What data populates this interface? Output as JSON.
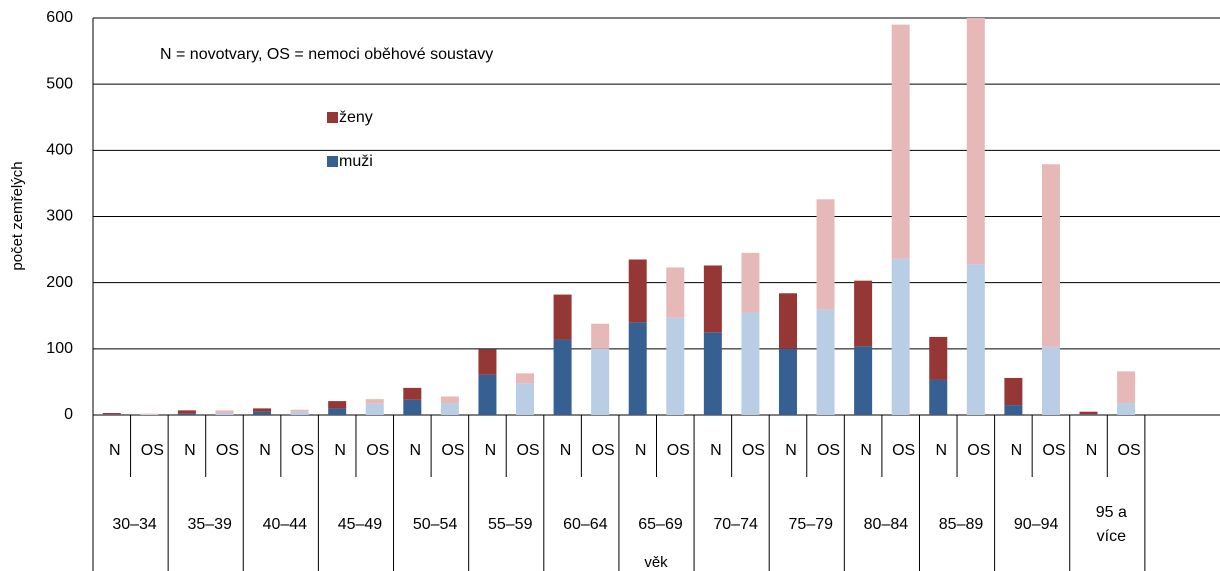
{
  "chart_data": {
    "type": "bar",
    "stacked": true,
    "annotation": "N = novotvary, OS = nemoci oběhové soustavy",
    "y_label": "počet zemřelých",
    "x_label": "věk",
    "groups": [
      "30–34",
      "35–39",
      "40–44",
      "45–49",
      "50–54",
      "55–59",
      "60–64",
      "65–69",
      "70–74",
      "75–79",
      "80–84",
      "85–89",
      "90–94",
      "95 a více"
    ],
    "categories": [
      "N",
      "OS",
      "N",
      "OS",
      "N",
      "OS",
      "N",
      "OS",
      "N",
      "OS",
      "N",
      "OS",
      "N",
      "OS",
      "N",
      "OS",
      "N",
      "OS",
      "N",
      "OS",
      "N",
      "OS",
      "N",
      "OS",
      "N",
      "OS",
      "N",
      "OS"
    ],
    "series": [
      {
        "name": "muži",
        "colors": [
          "#376092",
          "#b9cde5"
        ],
        "values": [
          1,
          1,
          2,
          3,
          5,
          5,
          10,
          17,
          23,
          18,
          61,
          48,
          114,
          100,
          140,
          147,
          125,
          155,
          100,
          160,
          104,
          236,
          53,
          228,
          15,
          103,
          1,
          18
        ]
      },
      {
        "name": "ženy",
        "colors": [
          "#953735",
          "#e6b9b8"
        ],
        "values": [
          2,
          1,
          5,
          4,
          5,
          3,
          11,
          7,
          18,
          10,
          38,
          15,
          68,
          38,
          95,
          76,
          101,
          90,
          84,
          166,
          99,
          354,
          65,
          372,
          41,
          276,
          4,
          48
        ]
      }
    ],
    "ylim": [
      0,
      600
    ],
    "yticks": [
      0,
      100,
      200,
      300,
      400,
      500,
      600
    ],
    "grid": true
  }
}
